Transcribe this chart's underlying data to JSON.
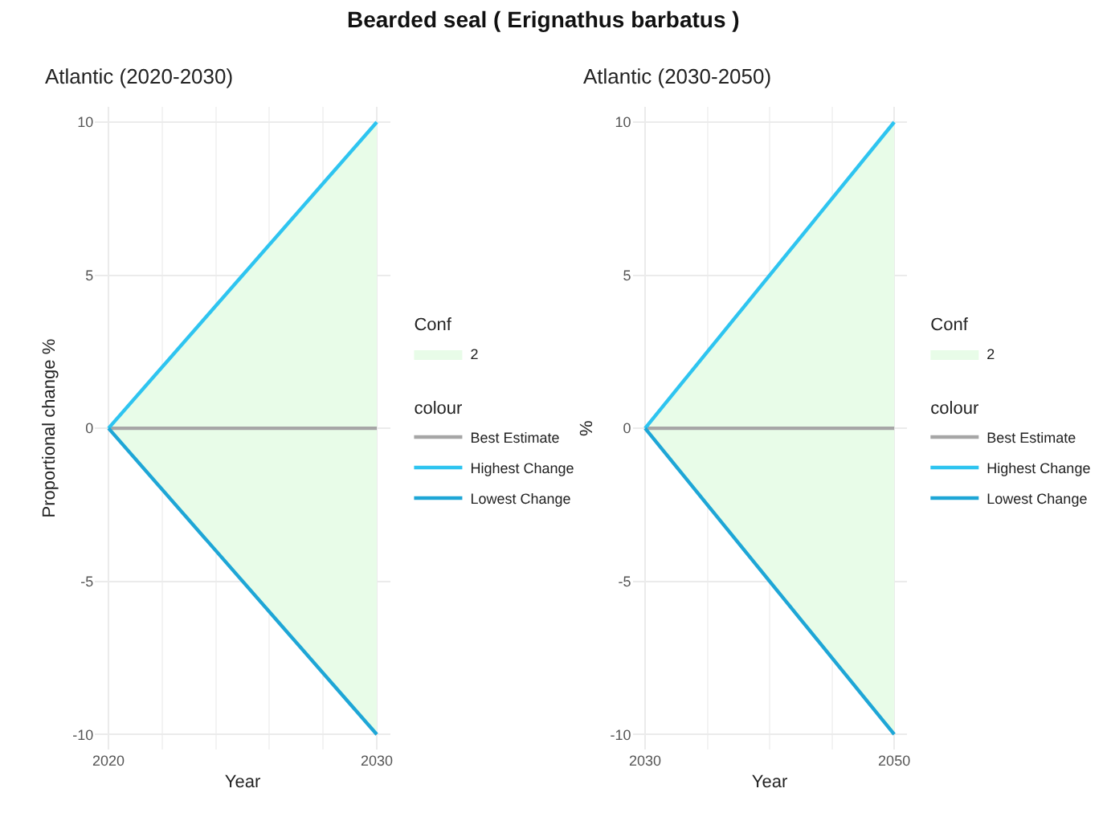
{
  "chart_data": [
    {
      "type": "line",
      "title": "Atlantic (2020-2030)",
      "annotations": [
        "Bearded seal ( Erignathus barbatus )"
      ],
      "xlabel": "Year",
      "ylabel": "Proportional change %",
      "legend_title": [
        "Conf",
        "colour"
      ],
      "x": [
        2020,
        2030
      ],
      "xlim": [
        2019.5,
        2030.5
      ],
      "xticks": [
        2020,
        2030
      ],
      "ylim": [
        -10.5,
        10.5
      ],
      "yticks": [
        -10,
        -5,
        0,
        5,
        10
      ],
      "grid": true,
      "legend": "right",
      "series": [
        {
          "name": "2",
          "color": "#e8fce8",
          "values": [
            null,
            null
          ],
          "lower": [
            0,
            -10
          ],
          "upper": [
            0,
            10
          ]
        },
        {
          "name": "Best Estimate",
          "color": "#a6a6a6",
          "values": [
            0,
            0
          ]
        },
        {
          "name": "Highest Change",
          "color": "#2ec4f0",
          "values": [
            0,
            10
          ]
        },
        {
          "name": "Lowest Change",
          "color": "#1ea6d6",
          "values": [
            0,
            -10
          ]
        }
      ]
    },
    {
      "type": "line",
      "title": "Atlantic (2030-2050)",
      "xlabel": "Year",
      "ylabel": "%",
      "legend_title": [
        "Conf",
        "colour"
      ],
      "x": [
        2030,
        2050
      ],
      "xlim": [
        2029,
        2051
      ],
      "xticks": [
        2030,
        2050
      ],
      "ylim": [
        -10.5,
        10.5
      ],
      "yticks": [
        -10,
        -5,
        0,
        5,
        10
      ],
      "grid": true,
      "legend": "right",
      "series": [
        {
          "name": "2",
          "color": "#e8fce8",
          "values": [
            null,
            null
          ],
          "lower": [
            0,
            -10
          ],
          "upper": [
            0,
            10
          ]
        },
        {
          "name": "Best Estimate",
          "color": "#a6a6a6",
          "values": [
            0,
            0
          ]
        },
        {
          "name": "Highest Change",
          "color": "#2ec4f0",
          "values": [
            0,
            10
          ]
        },
        {
          "name": "Lowest Change",
          "color": "#1ea6d6",
          "values": [
            0,
            -10
          ]
        }
      ]
    }
  ]
}
